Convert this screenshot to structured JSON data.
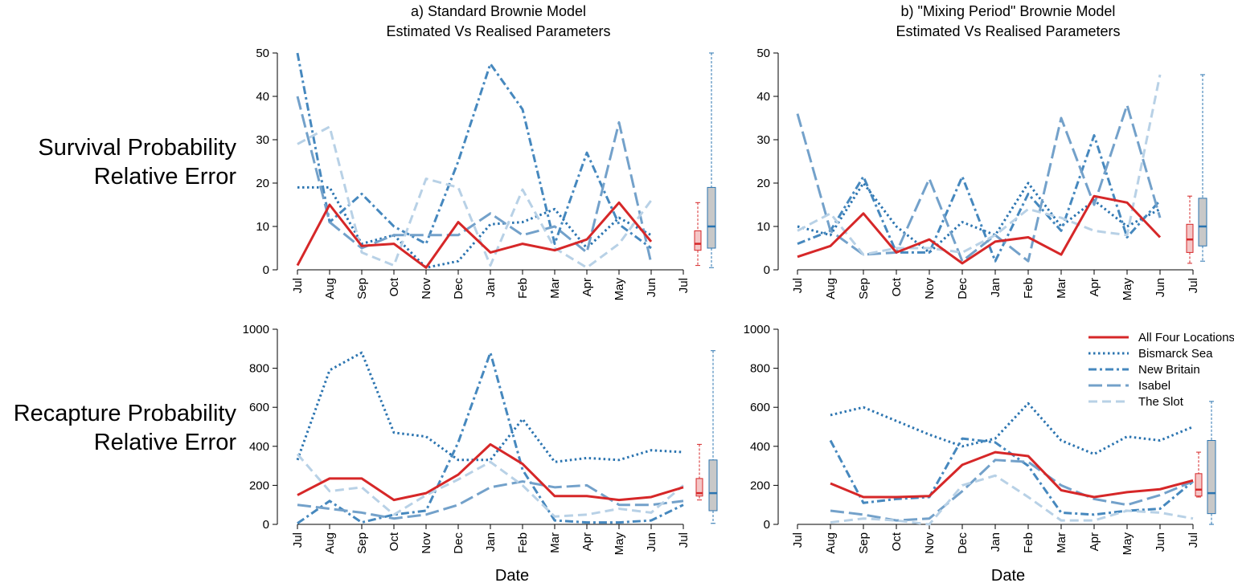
{
  "colors": {
    "all_four": "#d62728",
    "bismarck": "#2b74b0",
    "new_britain": "#4688be",
    "isabel": "#73a1ca",
    "slot": "#b8d1e6",
    "box_fill": "#c8c8c8"
  },
  "column_titles": [
    {
      "line1": "a) Standard Brownie Model",
      "line2": "Estimated Vs Realised Parameters"
    },
    {
      "line1": "b) \"Mixing Period\" Brownie Model",
      "line2": "Estimated Vs Realised Parameters"
    }
  ],
  "row_labels": [
    {
      "line1": "Survival Probability",
      "line2": "Relative Error"
    },
    {
      "line1": "Recapture Probability",
      "line2": "Relative Error"
    }
  ],
  "x_axis_title": "Date",
  "legend": {
    "items": [
      {
        "label": "All Four Locations",
        "style": "solid",
        "color_key": "all_four"
      },
      {
        "label": "Bismarck Sea",
        "style": "dotted",
        "color_key": "bismarck"
      },
      {
        "label": "New Britain",
        "style": "dashdot",
        "color_key": "new_britain"
      },
      {
        "label": "Isabel",
        "style": "longdash",
        "color_key": "isabel"
      },
      {
        "label": "The Slot",
        "style": "dashed",
        "color_key": "slot"
      }
    ]
  },
  "chart_data": [
    {
      "id": "a-survival",
      "type": "line",
      "title": "a) Standard Brownie Model Estimated Vs Realised Parameters",
      "ylabel": "Survival Probability Relative Error",
      "xlabel": "",
      "categories": [
        "Jul",
        "Aug",
        "Sep",
        "Oct",
        "Nov",
        "Dec",
        "Jan",
        "Feb",
        "Mar",
        "Apr",
        "May",
        "Jun",
        "Jul"
      ],
      "ylim": [
        0,
        50
      ],
      "yticks": [
        0,
        10,
        20,
        30,
        40,
        50
      ],
      "series": [
        {
          "name": "Bismarck Sea",
          "values": [
            19,
            19,
            6,
            8,
            0.5,
            2,
            10.5,
            11,
            14,
            5,
            12,
            8,
            null
          ]
        },
        {
          "name": "New Britain",
          "values": [
            50,
            11,
            17.5,
            10,
            6,
            25,
            47.5,
            37,
            6,
            27,
            10.5,
            5,
            null
          ]
        },
        {
          "name": "Isabel",
          "values": [
            40,
            11,
            5,
            8,
            8,
            8,
            13,
            8,
            10,
            4,
            34,
            1.5,
            null
          ]
        },
        {
          "name": "The Slot",
          "values": [
            29,
            33,
            4,
            1,
            21,
            19,
            1,
            18.5,
            5,
            0.5,
            6,
            16,
            null
          ]
        },
        {
          "name": "All Four Locations",
          "values": [
            1,
            15,
            5.5,
            6,
            0.5,
            11,
            4,
            6,
            4.5,
            7,
            15.5,
            6.5,
            null
          ]
        }
      ],
      "boxplots": [
        {
          "name": "All Four Locations",
          "min": 1,
          "q1": 4.5,
          "median": 6,
          "q3": 9,
          "max": 15.5
        },
        {
          "name": "Sites",
          "min": 0.5,
          "q1": 5,
          "median": 10,
          "q3": 19,
          "max": 50
        }
      ]
    },
    {
      "id": "b-survival",
      "type": "line",
      "title": "b) \"Mixing Period\" Brownie Model Estimated Vs Realised Parameters",
      "ylabel": "Survival Probability Relative Error",
      "xlabel": "",
      "categories": [
        "Jul",
        "Aug",
        "Sep",
        "Oct",
        "Nov",
        "Dec",
        "Jan",
        "Feb",
        "Mar",
        "Apr",
        "May",
        "Jun",
        "Jul"
      ],
      "ylim": [
        0,
        50
      ],
      "yticks": [
        0,
        10,
        20,
        30,
        40,
        50
      ],
      "series": [
        {
          "name": "Bismarck Sea",
          "values": [
            10,
            8,
            20,
            10,
            4,
            11,
            8,
            20,
            10,
            16,
            10,
            14,
            null
          ]
        },
        {
          "name": "New Britain",
          "values": [
            6,
            9,
            21.5,
            4,
            4,
            21.5,
            2,
            17.5,
            9,
            31,
            7.5,
            16,
            null
          ]
        },
        {
          "name": "Isabel",
          "values": [
            36,
            9,
            3.5,
            4,
            21,
            2,
            8,
            2,
            35,
            15,
            38,
            12,
            null
          ]
        },
        {
          "name": "The Slot",
          "values": [
            9,
            13,
            3.5,
            5,
            5,
            4,
            8,
            14,
            12,
            9,
            8,
            45,
            null
          ]
        },
        {
          "name": "All Four Locations",
          "values": [
            3,
            5.5,
            13,
            4,
            7,
            1.5,
            6.5,
            7.5,
            3.5,
            17,
            15.5,
            7.5,
            null
          ]
        }
      ],
      "boxplots": [
        {
          "name": "All Four Locations",
          "min": 1.5,
          "q1": 4,
          "median": 7,
          "q3": 10.5,
          "max": 17
        },
        {
          "name": "Sites",
          "min": 2,
          "q1": 5.5,
          "median": 10,
          "q3": 16.5,
          "max": 45
        }
      ]
    },
    {
      "id": "a-recapture",
      "type": "line",
      "title": "",
      "ylabel": "Recapture Probability Relative Error",
      "xlabel": "Date",
      "categories": [
        "Jul",
        "Aug",
        "Sep",
        "Oct",
        "Nov",
        "Dec",
        "Jan",
        "Feb",
        "Mar",
        "Apr",
        "May",
        "Jun",
        "Jul"
      ],
      "ylim": [
        0,
        1000
      ],
      "yticks": [
        0,
        200,
        400,
        600,
        800,
        1000
      ],
      "series": [
        {
          "name": "Bismarck Sea",
          "values": [
            330,
            790,
            880,
            470,
            450,
            330,
            330,
            540,
            320,
            340,
            330,
            380,
            370
          ]
        },
        {
          "name": "New Britain",
          "values": [
            5,
            120,
            10,
            50,
            70,
            420,
            880,
            280,
            20,
            10,
            10,
            20,
            100
          ]
        },
        {
          "name": "Isabel",
          "values": [
            100,
            80,
            60,
            30,
            50,
            100,
            190,
            220,
            190,
            200,
            100,
            100,
            120
          ]
        },
        {
          "name": "The Slot",
          "values": [
            360,
            170,
            190,
            50,
            150,
            230,
            320,
            200,
            40,
            50,
            80,
            60,
            200
          ]
        },
        {
          "name": "All Four Locations",
          "values": [
            150,
            235,
            235,
            125,
            160,
            255,
            410,
            310,
            145,
            145,
            125,
            140,
            190
          ]
        }
      ],
      "boxplots": [
        {
          "name": "All Four Locations",
          "min": 125,
          "q1": 145,
          "median": 160,
          "q3": 235,
          "max": 410
        },
        {
          "name": "Sites",
          "min": 5,
          "q1": 70,
          "median": 160,
          "q3": 330,
          "max": 890
        }
      ]
    },
    {
      "id": "b-recapture",
      "type": "line",
      "title": "",
      "ylabel": "Recapture Probability Relative Error",
      "xlabel": "Date",
      "categories": [
        "Jul",
        "Aug",
        "Sep",
        "Oct",
        "Nov",
        "Dec",
        "Jan",
        "Feb",
        "Mar",
        "Apr",
        "May",
        "Jun",
        "Jul"
      ],
      "ylim": [
        0,
        1000
      ],
      "yticks": [
        0,
        200,
        400,
        600,
        800,
        1000
      ],
      "series": [
        {
          "name": "Bismarck Sea",
          "values": [
            null,
            560,
            600,
            530,
            460,
            400,
            440,
            620,
            430,
            360,
            450,
            430,
            500
          ]
        },
        {
          "name": "New Britain",
          "values": [
            null,
            430,
            110,
            130,
            140,
            440,
            420,
            300,
            60,
            50,
            70,
            80,
            220
          ]
        },
        {
          "name": "Isabel",
          "values": [
            null,
            70,
            50,
            20,
            30,
            170,
            330,
            320,
            200,
            130,
            100,
            150,
            220
          ]
        },
        {
          "name": "The Slot",
          "values": [
            null,
            10,
            30,
            20,
            0,
            200,
            250,
            140,
            20,
            20,
            70,
            60,
            30
          ]
        },
        {
          "name": "All Four Locations",
          "values": [
            null,
            210,
            140,
            140,
            145,
            305,
            370,
            350,
            175,
            140,
            165,
            180,
            225
          ]
        }
      ],
      "boxplots": [
        {
          "name": "All Four Locations",
          "min": 140,
          "q1": 145,
          "median": 178,
          "q3": 260,
          "max": 370
        },
        {
          "name": "Sites",
          "min": 0,
          "q1": 55,
          "median": 160,
          "q3": 430,
          "max": 630
        }
      ]
    }
  ]
}
